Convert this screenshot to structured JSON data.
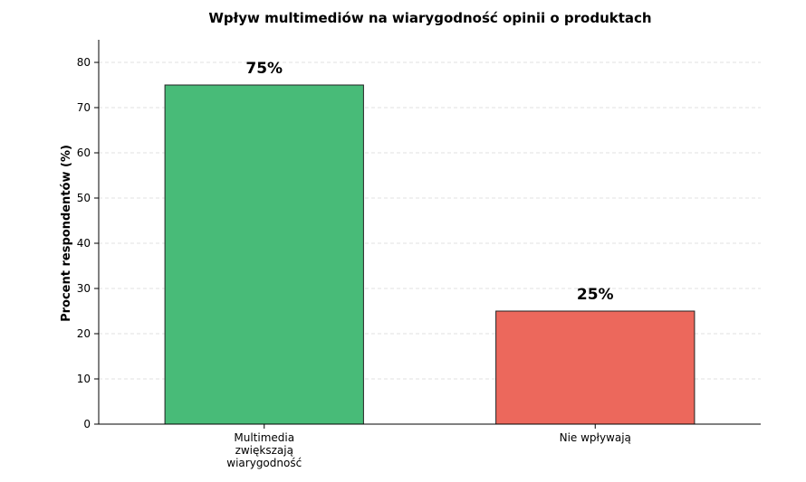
{
  "chart_data": {
    "type": "bar",
    "title": "Wpływ multimediów na wiarygodność opinii o produktach",
    "ylabel": "Procent respondentów (%)",
    "xlabel": "",
    "ylim": [
      0,
      85
    ],
    "yticks": [
      0,
      10,
      20,
      30,
      40,
      50,
      60,
      70,
      80
    ],
    "grid": "horizontal-dashed",
    "categories": [
      [
        "Multimedia",
        "zwiększają",
        "wiarygodność"
      ],
      [
        "Nie wpływają"
      ]
    ],
    "values": [
      75,
      25
    ],
    "data_labels": [
      "75%",
      "25%"
    ],
    "colors": [
      "#48bb78",
      "#ec685c"
    ]
  }
}
